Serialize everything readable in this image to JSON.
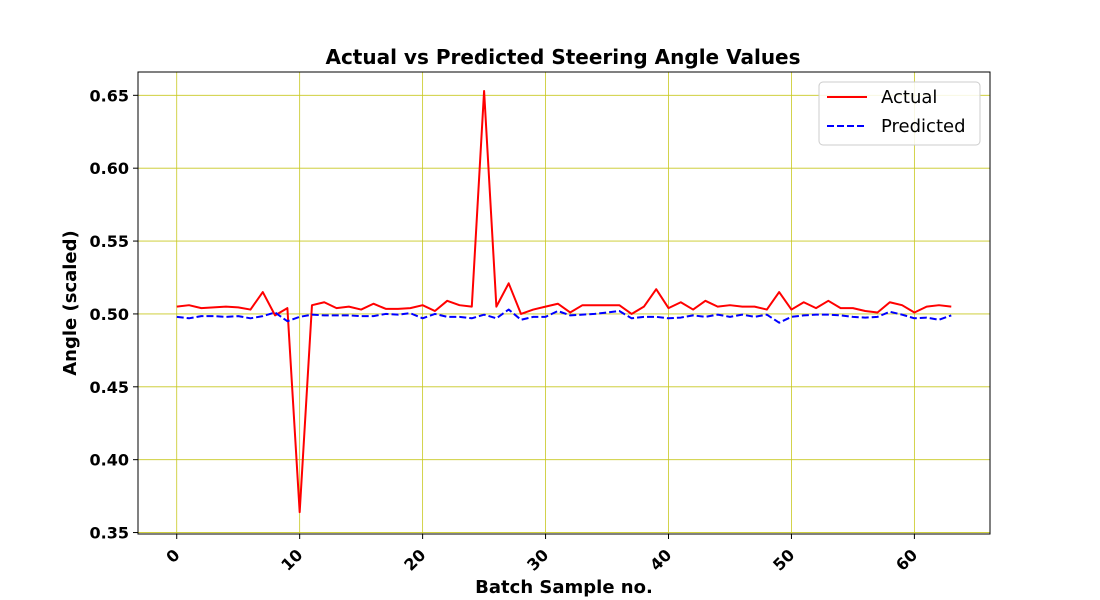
{
  "chart_data": {
    "type": "line",
    "title": "Actual vs Predicted Steering Angle Values",
    "xlabel": "Batch Sample no.",
    "ylabel": "Angle (scaled)",
    "xlim": [
      -3.15,
      66.15
    ],
    "ylim": [
      0.349,
      0.666
    ],
    "xticks": [
      0,
      10,
      20,
      30,
      40,
      50,
      60
    ],
    "yticks": [
      0.35,
      0.4,
      0.45,
      0.5,
      0.55,
      0.6,
      0.65
    ],
    "ytick_labels": [
      "0.35",
      "0.40",
      "0.45",
      "0.50",
      "0.55",
      "0.60",
      "0.65"
    ],
    "grid": true,
    "grid_color": "#c8c820",
    "legend_position": "top-right",
    "series": [
      {
        "name": "Actual",
        "color": "#ff0000",
        "style": "solid",
        "values": [
          0.505,
          0.506,
          0.504,
          0.5045,
          0.505,
          0.5045,
          0.503,
          0.515,
          0.499,
          0.504,
          0.364,
          0.506,
          0.508,
          0.504,
          0.505,
          0.503,
          0.507,
          0.5035,
          0.5035,
          0.504,
          0.506,
          0.502,
          0.509,
          0.506,
          0.505,
          0.653,
          0.505,
          0.521,
          0.5,
          0.503,
          0.505,
          0.507,
          0.501,
          0.506,
          0.506,
          0.506,
          0.506,
          0.5,
          0.505,
          0.517,
          0.504,
          0.508,
          0.503,
          0.509,
          0.505,
          0.506,
          0.505,
          0.505,
          0.503,
          0.515,
          0.503,
          0.508,
          0.504,
          0.509,
          0.504,
          0.504,
          0.502,
          0.501,
          0.508,
          0.506,
          0.501,
          0.505,
          0.506,
          0.505
        ]
      },
      {
        "name": "Predicted",
        "color": "#0000ff",
        "style": "dashed",
        "values": [
          0.498,
          0.497,
          0.4985,
          0.4985,
          0.498,
          0.4985,
          0.497,
          0.4985,
          0.501,
          0.495,
          0.498,
          0.4995,
          0.499,
          0.499,
          0.499,
          0.4985,
          0.4985,
          0.5,
          0.4995,
          0.5005,
          0.497,
          0.5,
          0.498,
          0.498,
          0.497,
          0.4995,
          0.497,
          0.503,
          0.496,
          0.498,
          0.498,
          0.502,
          0.499,
          0.4995,
          0.5,
          0.501,
          0.502,
          0.497,
          0.498,
          0.498,
          0.497,
          0.4975,
          0.499,
          0.498,
          0.4995,
          0.498,
          0.4995,
          0.498,
          0.4995,
          0.494,
          0.498,
          0.499,
          0.4995,
          0.4995,
          0.499,
          0.498,
          0.4975,
          0.498,
          0.5015,
          0.4995,
          0.497,
          0.4975,
          0.496,
          0.499
        ]
      }
    ]
  }
}
